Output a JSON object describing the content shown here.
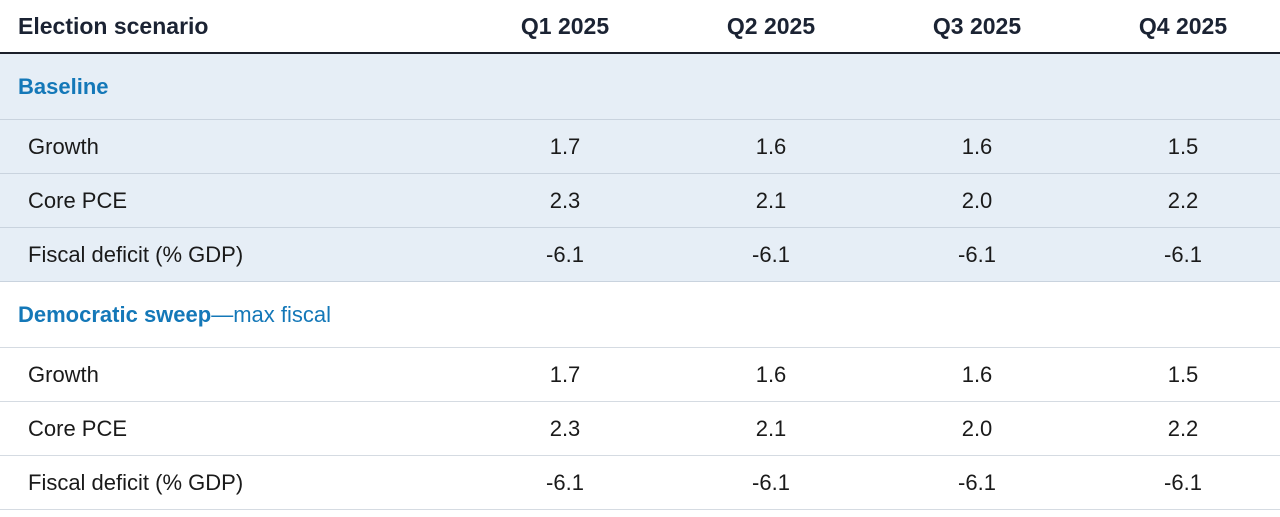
{
  "header": {
    "col0": "Election scenario",
    "quarters": [
      "Q1 2025",
      "Q2 2025",
      "Q3 2025",
      "Q4 2025"
    ]
  },
  "sections": [
    {
      "title_bold": "Baseline",
      "title_light": "",
      "rows": [
        {
          "label": "Growth",
          "values": [
            "1.7",
            "1.6",
            "1.6",
            "1.5"
          ]
        },
        {
          "label": "Core PCE",
          "values": [
            "2.3",
            "2.1",
            "2.0",
            "2.2"
          ]
        },
        {
          "label": "Fiscal deficit (% GDP)",
          "values": [
            "-6.1",
            "-6.1",
            "-6.1",
            "-6.1"
          ]
        }
      ]
    },
    {
      "title_bold": "Democratic sweep",
      "title_light": "—max fiscal",
      "rows": [
        {
          "label": "Growth",
          "values": [
            "1.7",
            "1.6",
            "1.6",
            "1.5"
          ]
        },
        {
          "label": "Core PCE",
          "values": [
            "2.3",
            "2.1",
            "2.0",
            "2.2"
          ]
        },
        {
          "label": "Fiscal deficit (% GDP)",
          "values": [
            "-6.1",
            "-6.1",
            "-6.1",
            "-6.1"
          ]
        }
      ]
    }
  ],
  "colors": {
    "section_title": "#1478b8",
    "shaded_bg": "#e6eef6",
    "header_rule": "#1b1f2a"
  }
}
